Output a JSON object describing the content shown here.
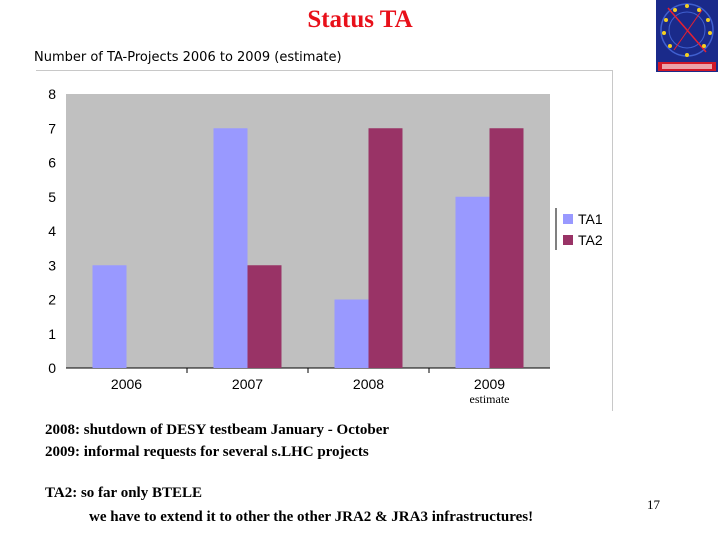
{
  "slide": {
    "title": "Status TA",
    "page_number": "17"
  },
  "chart_data": {
    "type": "bar",
    "title": "Number of TA-Projects 2006 to 2009 (estimate)",
    "categories": [
      "2006",
      "2007",
      "2008",
      "2009"
    ],
    "category_sublabels": [
      "",
      "",
      "",
      "estimate"
    ],
    "series": [
      {
        "name": "TA1",
        "values": [
          3,
          7,
          2,
          5
        ],
        "color": "#9999ff"
      },
      {
        "name": "TA2",
        "values": [
          0,
          3,
          7,
          7
        ],
        "color": "#993366"
      }
    ],
    "ylim": [
      0,
      8
    ],
    "yticks": [
      0,
      1,
      2,
      3,
      4,
      5,
      6,
      7,
      8
    ],
    "grid": false,
    "plot_background": "#c0c0c0",
    "legend": "right"
  },
  "notes": {
    "line1": "2008: shutdown of DESY testbeam January - October",
    "line2": "2009: informal requests for several s.LHC projects",
    "line3": "TA2: so far only BTELE",
    "line4": "we have to extend it to other the other JRA2 & JRA3 infrastructures!"
  }
}
